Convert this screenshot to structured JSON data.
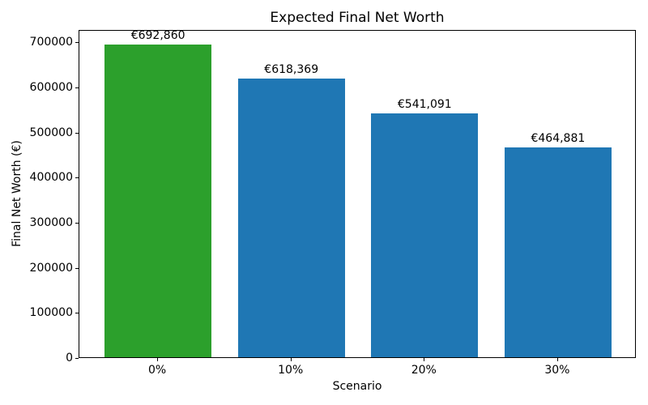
{
  "chart_data": {
    "type": "bar",
    "title": "Expected Final Net Worth",
    "xlabel": "Scenario",
    "ylabel": "Final Net Worth (€)",
    "categories": [
      "0%",
      "10%",
      "20%",
      "30%"
    ],
    "values": [
      692860,
      618369,
      541091,
      464881
    ],
    "value_labels": [
      "€692,860",
      "€618,369",
      "€541,091",
      "€464,881"
    ],
    "bar_colors": [
      "#2ca02c",
      "#1f77b4",
      "#1f77b4",
      "#1f77b4"
    ],
    "yticks": [
      0,
      100000,
      200000,
      300000,
      400000,
      500000,
      600000,
      700000
    ],
    "ytick_labels": [
      "0",
      "100000",
      "200000",
      "300000",
      "400000",
      "500000",
      "600000",
      "700000"
    ],
    "ylim": [
      0,
      727503
    ],
    "xlim": [
      -0.59,
      3.59
    ],
    "bar_width": 0.8,
    "grid": false,
    "legend": null
  }
}
